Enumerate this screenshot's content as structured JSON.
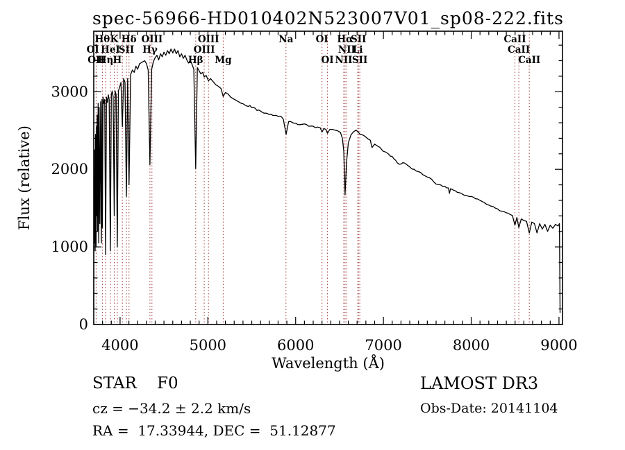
{
  "chart_data": {
    "type": "line",
    "title": "spec-56966-HD010402N523007V01_sp08-222.fits",
    "xlabel": "Wavelength (Å)",
    "ylabel": "Flux (relative)",
    "xlim": [
      3700,
      9040
    ],
    "ylim": [
      0,
      3780
    ],
    "x_ticks": [
      4000,
      5000,
      6000,
      7000,
      8000,
      9000
    ],
    "y_ticks": [
      0,
      1000,
      2000,
      3000
    ],
    "x_minor_step": 100,
    "y_minor_step": 200,
    "grid": false,
    "legend": null,
    "colors": {
      "curve": "#000000",
      "marker_line": "#9e3737",
      "text": "#000000",
      "background": "#ffffff"
    },
    "line_markers": {
      "rows": [
        [
          {
            "label": "Hθ",
            "wl": 3798
          },
          {
            "label": "K",
            "wl": 3933
          },
          {
            "label": "Hδ",
            "wl": 4102
          },
          {
            "label": "OIII",
            "wl": 4363
          },
          {
            "label": "OIII",
            "wl": 5007
          },
          {
            "label": "Na",
            "wl": 5890
          },
          {
            "label": "OI",
            "wl": 6300
          },
          {
            "label": "Hα",
            "wl": 6563
          },
          {
            "label": "SII",
            "wl": 6716
          },
          {
            "label": "CaII",
            "wl": 8498
          }
        ],
        [
          {
            "label": "OI",
            "wl": 3690
          },
          {
            "label": "HeI",
            "wl": 3889
          },
          {
            "label": "SII",
            "wl": 4072
          },
          {
            "label": "Hγ",
            "wl": 4340
          },
          {
            "label": "OIII",
            "wl": 4959
          },
          {
            "label": "NII",
            "wl": 6583
          },
          {
            "label": "Li",
            "wl": 6708
          },
          {
            "label": "CaII",
            "wl": 8542
          }
        ],
        [
          {
            "label": "OII",
            "wl": 3727
          },
          {
            "label": "Hη",
            "wl": 3835
          },
          {
            "label": "H",
            "wl": 3968
          },
          {
            "label": "Hβ",
            "wl": 4861
          },
          {
            "label": "Mg",
            "wl": 5175
          },
          {
            "label": "OI",
            "wl": 6363
          },
          {
            "label": "NII",
            "wl": 6548
          },
          {
            "label": "SII",
            "wl": 6731
          },
          {
            "label": "CaII",
            "wl": 8662
          }
        ]
      ],
      "dotted_wavelengths": [
        3727,
        3798,
        3835,
        3889,
        3933,
        3968,
        4026,
        4072,
        4102,
        4340,
        4363,
        4861,
        4959,
        5007,
        5175,
        5890,
        6300,
        6363,
        6548,
        6563,
        6583,
        6708,
        6716,
        6731,
        8498,
        8542,
        8662
      ]
    },
    "series": [
      {
        "name": "spectrum",
        "points": [
          [
            3700,
            200
          ],
          [
            3704,
            1900
          ],
          [
            3708,
            1050
          ],
          [
            3712,
            2250
          ],
          [
            3716,
            950
          ],
          [
            3720,
            2450
          ],
          [
            3727,
            1000
          ],
          [
            3731,
            2550
          ],
          [
            3735,
            1400
          ],
          [
            3739,
            2700
          ],
          [
            3744,
            1200
          ],
          [
            3750,
            2850
          ],
          [
            3756,
            1050
          ],
          [
            3762,
            2800
          ],
          [
            3770,
            1300
          ],
          [
            3778,
            2870
          ],
          [
            3787,
            1050
          ],
          [
            3794,
            2900
          ],
          [
            3798,
            1250
          ],
          [
            3806,
            2930
          ],
          [
            3815,
            2850
          ],
          [
            3825,
            2900
          ],
          [
            3835,
            900
          ],
          [
            3845,
            2930
          ],
          [
            3855,
            2860
          ],
          [
            3866,
            2960
          ],
          [
            3876,
            2900
          ],
          [
            3889,
            950
          ],
          [
            3900,
            2960
          ],
          [
            3910,
            3010
          ],
          [
            3921,
            2940
          ],
          [
            3933,
            1400
          ],
          [
            3944,
            3010
          ],
          [
            3955,
            2960
          ],
          [
            3968,
            1000
          ],
          [
            3981,
            3010
          ],
          [
            3995,
            3060
          ],
          [
            4010,
            3120
          ],
          [
            4026,
            2550
          ],
          [
            4040,
            3170
          ],
          [
            4056,
            3120
          ],
          [
            4072,
            1650
          ],
          [
            4086,
            3170
          ],
          [
            4102,
            1800
          ],
          [
            4120,
            3220
          ],
          [
            4140,
            3280
          ],
          [
            4161,
            3250
          ],
          [
            4180,
            3330
          ],
          [
            4200,
            3290
          ],
          [
            4221,
            3360
          ],
          [
            4250,
            3380
          ],
          [
            4280,
            3400
          ],
          [
            4301,
            3360
          ],
          [
            4320,
            3280
          ],
          [
            4340,
            2060
          ],
          [
            4360,
            3290
          ],
          [
            4380,
            3390
          ],
          [
            4400,
            3440
          ],
          [
            4420,
            3470
          ],
          [
            4440,
            3410
          ],
          [
            4460,
            3490
          ],
          [
            4480,
            3450
          ],
          [
            4500,
            3510
          ],
          [
            4520,
            3470
          ],
          [
            4540,
            3530
          ],
          [
            4560,
            3490
          ],
          [
            4580,
            3550
          ],
          [
            4600,
            3500
          ],
          [
            4620,
            3550
          ],
          [
            4640,
            3490
          ],
          [
            4660,
            3530
          ],
          [
            4680,
            3450
          ],
          [
            4700,
            3490
          ],
          [
            4720,
            3430
          ],
          [
            4740,
            3470
          ],
          [
            4760,
            3410
          ],
          [
            4780,
            3370
          ],
          [
            4800,
            3410
          ],
          [
            4820,
            3350
          ],
          [
            4840,
            3290
          ],
          [
            4861,
            2010
          ],
          [
            4880,
            3310
          ],
          [
            4900,
            3270
          ],
          [
            4920,
            3230
          ],
          [
            4941,
            3250
          ],
          [
            4959,
            3190
          ],
          [
            4980,
            3210
          ],
          [
            5007,
            3140
          ],
          [
            5030,
            3170
          ],
          [
            5060,
            3130
          ],
          [
            5090,
            3090
          ],
          [
            5120,
            3070
          ],
          [
            5150,
            3040
          ],
          [
            5175,
            2940
          ],
          [
            5200,
            2990
          ],
          [
            5230,
            2970
          ],
          [
            5260,
            2930
          ],
          [
            5290,
            2910
          ],
          [
            5320,
            2890
          ],
          [
            5350,
            2870
          ],
          [
            5380,
            2850
          ],
          [
            5420,
            2830
          ],
          [
            5460,
            2810
          ],
          [
            5500,
            2795
          ],
          [
            5540,
            2785
          ],
          [
            5580,
            2765
          ],
          [
            5620,
            2735
          ],
          [
            5660,
            2725
          ],
          [
            5700,
            2705
          ],
          [
            5740,
            2695
          ],
          [
            5780,
            2695
          ],
          [
            5820,
            2685
          ],
          [
            5860,
            2645
          ],
          [
            5891,
            2450
          ],
          [
            5920,
            2615
          ],
          [
            5960,
            2605
          ],
          [
            6000,
            2595
          ],
          [
            6050,
            2575
          ],
          [
            6100,
            2585
          ],
          [
            6150,
            2555
          ],
          [
            6200,
            2555
          ],
          [
            6250,
            2545
          ],
          [
            6280,
            2535
          ],
          [
            6300,
            2480
          ],
          [
            6320,
            2525
          ],
          [
            6345,
            2515
          ],
          [
            6363,
            2465
          ],
          [
            6390,
            2515
          ],
          [
            6420,
            2515
          ],
          [
            6450,
            2505
          ],
          [
            6480,
            2495
          ],
          [
            6510,
            2475
          ],
          [
            6532,
            2400
          ],
          [
            6548,
            2240
          ],
          [
            6563,
            1670
          ],
          [
            6580,
            2090
          ],
          [
            6600,
            2340
          ],
          [
            6630,
            2445
          ],
          [
            6660,
            2485
          ],
          [
            6690,
            2505
          ],
          [
            6716,
            2475
          ],
          [
            6731,
            2455
          ],
          [
            6760,
            2445
          ],
          [
            6790,
            2425
          ],
          [
            6820,
            2395
          ],
          [
            6850,
            2375
          ],
          [
            6870,
            2280
          ],
          [
            6900,
            2325
          ],
          [
            6940,
            2295
          ],
          [
            6980,
            2255
          ],
          [
            7020,
            2225
          ],
          [
            7060,
            2195
          ],
          [
            7100,
            2165
          ],
          [
            7140,
            2115
          ],
          [
            7180,
            2065
          ],
          [
            7220,
            2085
          ],
          [
            7260,
            2065
          ],
          [
            7300,
            2030
          ],
          [
            7350,
            2000
          ],
          [
            7400,
            1970
          ],
          [
            7450,
            1930
          ],
          [
            7500,
            1900
          ],
          [
            7550,
            1870
          ],
          [
            7600,
            1810
          ],
          [
            7650,
            1800
          ],
          [
            7700,
            1780
          ],
          [
            7740,
            1760
          ],
          [
            7752,
            1690
          ],
          [
            7764,
            1750
          ],
          [
            7800,
            1730
          ],
          [
            7860,
            1700
          ],
          [
            7900,
            1680
          ],
          [
            7950,
            1660
          ],
          [
            8000,
            1650
          ],
          [
            8050,
            1620
          ],
          [
            8100,
            1600
          ],
          [
            8150,
            1570
          ],
          [
            8200,
            1540
          ],
          [
            8250,
            1520
          ],
          [
            8300,
            1490
          ],
          [
            8350,
            1460
          ],
          [
            8400,
            1440
          ],
          [
            8440,
            1420
          ],
          [
            8470,
            1405
          ],
          [
            8498,
            1280
          ],
          [
            8520,
            1380
          ],
          [
            8542,
            1250
          ],
          [
            8570,
            1360
          ],
          [
            8600,
            1340
          ],
          [
            8630,
            1330
          ],
          [
            8662,
            1180
          ],
          [
            8690,
            1320
          ],
          [
            8720,
            1300
          ],
          [
            8750,
            1180
          ],
          [
            8780,
            1300
          ],
          [
            8810,
            1230
          ],
          [
            8840,
            1290
          ],
          [
            8870,
            1200
          ],
          [
            8900,
            1280
          ],
          [
            8930,
            1240
          ],
          [
            8960,
            1290
          ],
          [
            8990,
            1270
          ],
          [
            9005,
            1300
          ],
          [
            9012,
            150
          ]
        ]
      }
    ]
  },
  "annotations": {
    "class_line": "STAR    F0",
    "cz_line": "cz = −34.2 ± 2.2 km/s",
    "radec_line": "RA =  17.33944, DEC =  51.12877",
    "survey": "LAMOST DR3",
    "obs_date": "Obs-Date: 20141104"
  }
}
